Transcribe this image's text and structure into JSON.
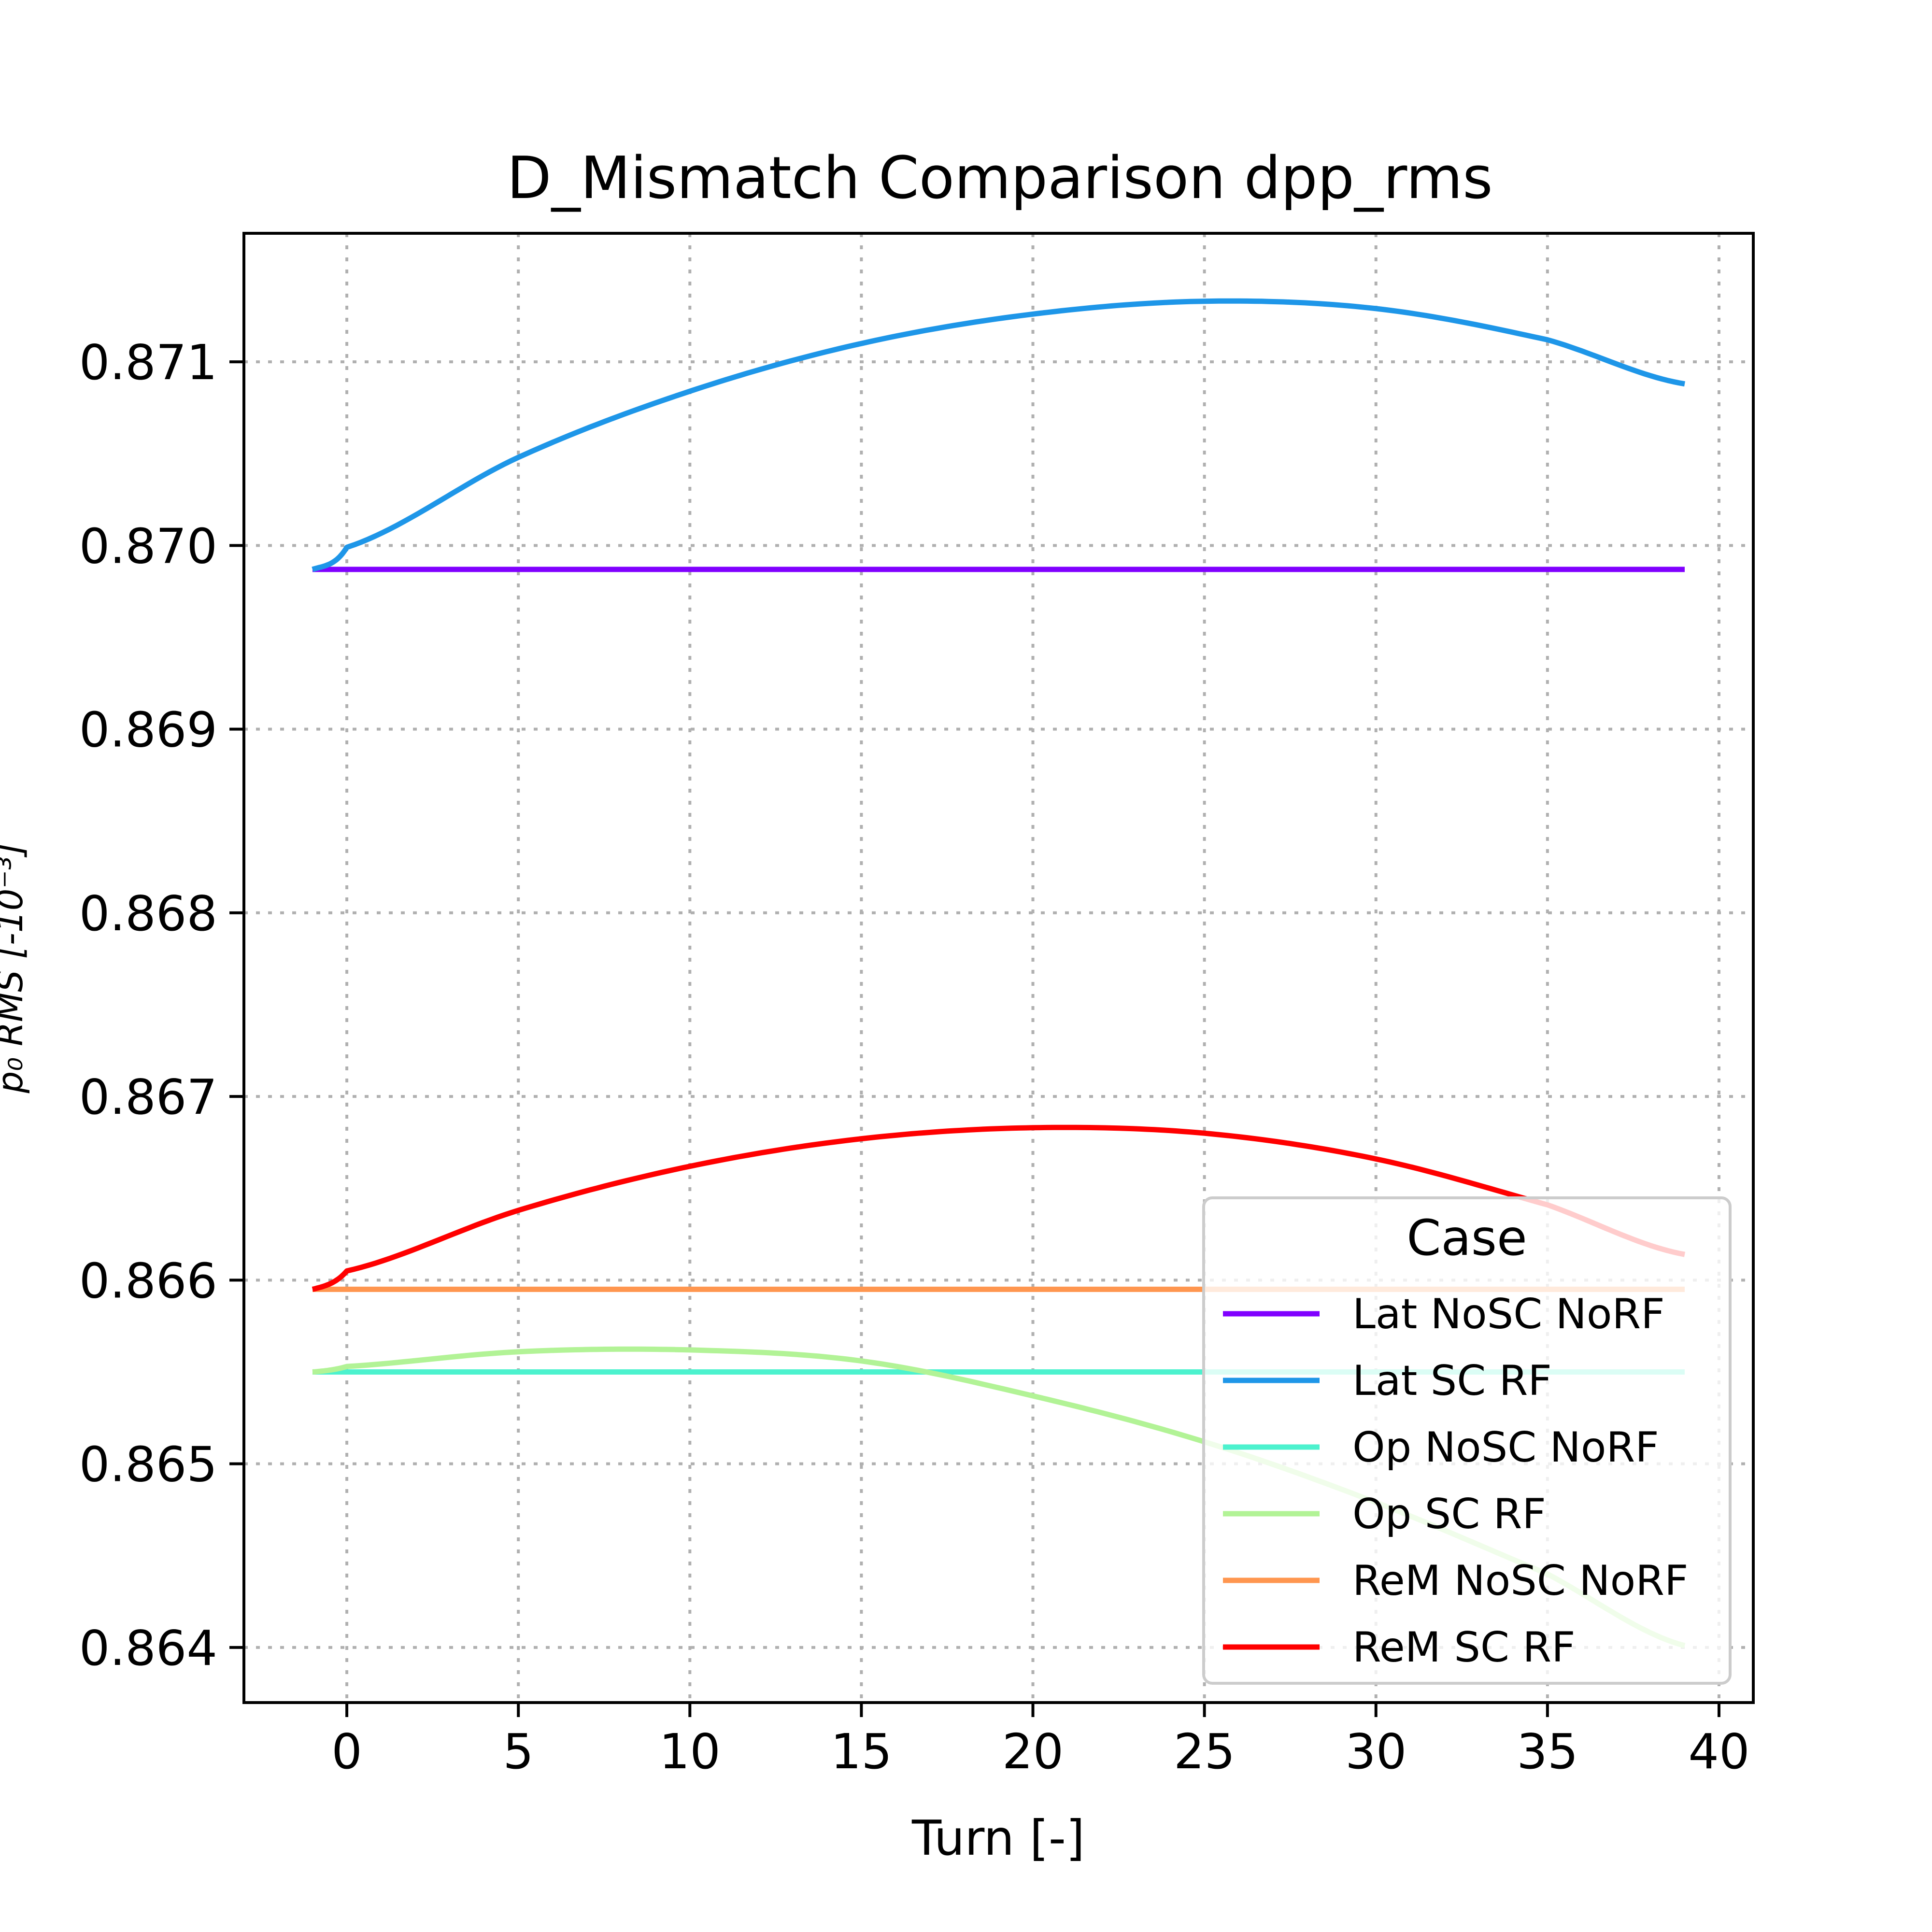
{
  "chart_data": {
    "type": "line",
    "title": "D_Mismatch Comparison dpp_rms",
    "xlabel": "Turn [-]",
    "ylabel": "p₀ RMS [-10⁻³]",
    "xlim": [
      -3,
      41
    ],
    "ylim": [
      0.8637,
      0.8717
    ],
    "xticks": [
      0,
      5,
      10,
      15,
      20,
      25,
      30,
      35,
      40
    ],
    "yticks": [
      "0.864",
      "0.865",
      "0.866",
      "0.867",
      "0.868",
      "0.869",
      "0.870",
      "0.871"
    ],
    "grid": true,
    "legend": {
      "title": "Case",
      "position": "lower-right"
    },
    "series": [
      {
        "name": "Lat NoSC NoRF",
        "color": "#8000ff",
        "x": [
          -1,
          39
        ],
        "y": [
          0.86987,
          0.86987
        ]
      },
      {
        "name": "Lat SC RF",
        "color": "#1e96e8",
        "x": [
          -1,
          0,
          5,
          10,
          15,
          20,
          25,
          30,
          35,
          39
        ],
        "y": [
          0.86987,
          0.86999,
          0.87048,
          0.87084,
          0.8711,
          0.87126,
          0.87133,
          0.87129,
          0.87112,
          0.87088
        ]
      },
      {
        "name": "Op NoSC NoRF",
        "color": "#4cf2ce",
        "x": [
          -1,
          39
        ],
        "y": [
          0.8655,
          0.8655
        ]
      },
      {
        "name": "Op SC RF",
        "color": "#b2f396",
        "x": [
          -1,
          0,
          5,
          10,
          15,
          20,
          25,
          30,
          35,
          39
        ],
        "y": [
          0.8655,
          0.86553,
          0.86561,
          0.86562,
          0.86556,
          0.86537,
          0.86512,
          0.86479,
          0.8644,
          0.86401
        ]
      },
      {
        "name": "ReM NoSC NoRF",
        "color": "#ff964f",
        "x": [
          -1,
          39
        ],
        "y": [
          0.86595,
          0.86595
        ]
      },
      {
        "name": "ReM SC RF",
        "color": "#ff0000",
        "x": [
          -1,
          0,
          5,
          10,
          15,
          20,
          25,
          30,
          35,
          39
        ],
        "y": [
          0.86595,
          0.86605,
          0.86638,
          0.86662,
          0.86677,
          0.86683,
          0.8668,
          0.86666,
          0.86641,
          0.86614
        ]
      }
    ]
  }
}
